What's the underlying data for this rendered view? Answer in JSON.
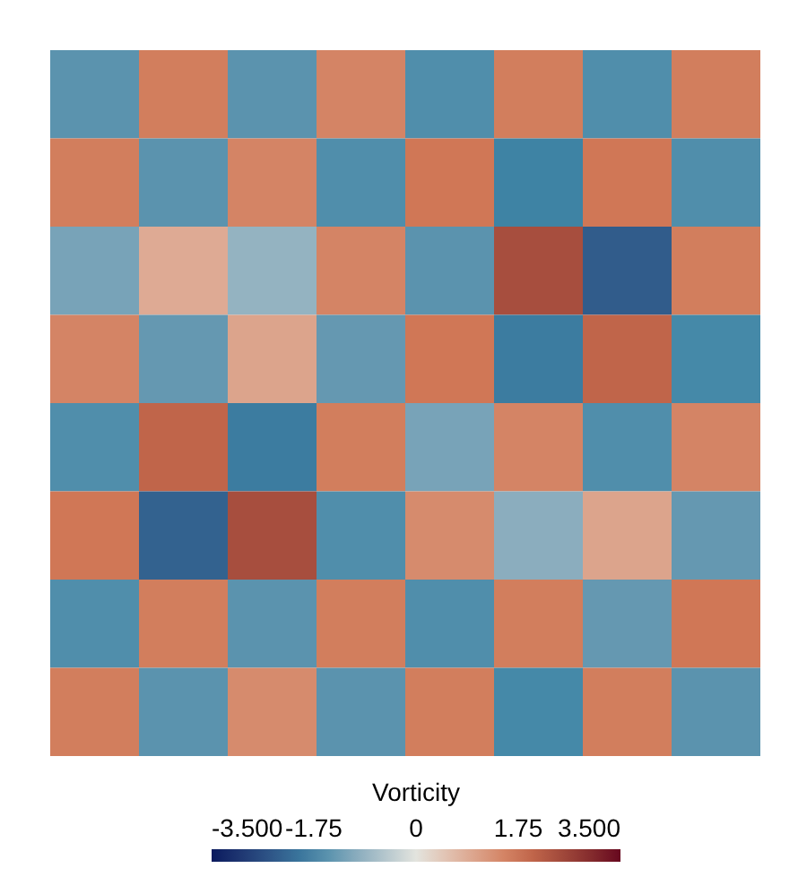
{
  "chart_data": {
    "type": "heatmap",
    "clabel": "Vorticity",
    "categories": [
      null,
      null,
      null,
      null,
      null,
      null,
      null,
      null
    ],
    "y_categories": [
      null,
      null,
      null,
      null,
      null,
      null,
      null,
      null
    ],
    "cells": [
      [
        -1.5,
        1.6,
        -1.5,
        1.5,
        -1.6,
        1.6,
        -1.6,
        1.6
      ],
      [
        1.6,
        -1.5,
        1.5,
        -1.6,
        1.7,
        -1.8,
        1.7,
        -1.6
      ],
      [
        -1.2,
        0.9,
        -0.9,
        1.5,
        -1.5,
        2.4,
        -2.4,
        1.6
      ],
      [
        1.5,
        -1.4,
        1.0,
        -1.4,
        1.7,
        -1.9,
        2.0,
        -1.7
      ],
      [
        -1.6,
        2.0,
        -1.9,
        1.6,
        -1.2,
        1.5,
        -1.6,
        1.5
      ],
      [
        1.7,
        -2.3,
        2.4,
        -1.6,
        1.4,
        -1.0,
        1.0,
        -1.4
      ],
      [
        -1.6,
        1.6,
        -1.5,
        1.6,
        -1.6,
        1.6,
        -1.4,
        1.7
      ],
      [
        1.6,
        -1.5,
        1.4,
        -1.5,
        1.6,
        -1.7,
        1.6,
        -1.5
      ]
    ],
    "clim": [
      -3.5,
      3.5
    ],
    "cticks": [
      {
        "value": -3.5,
        "label": "-3.500"
      },
      -1.75,
      0,
      1.75,
      {
        "value": 3.5,
        "label": "3.500"
      }
    ],
    "tick_labels": false
  }
}
